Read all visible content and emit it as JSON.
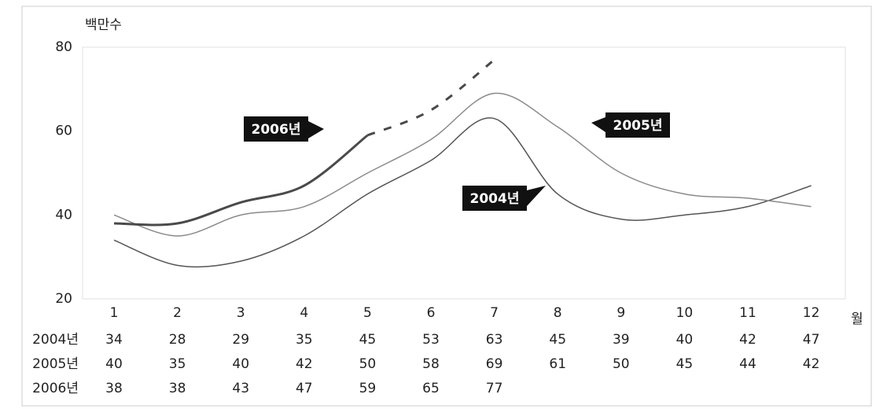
{
  "chart_data": {
    "type": "line",
    "y_label": "백만수",
    "x_label": "월",
    "categories": [
      "1",
      "2",
      "3",
      "4",
      "5",
      "6",
      "7",
      "8",
      "9",
      "10",
      "11",
      "12"
    ],
    "ylim": [
      20,
      80
    ],
    "yticks": [
      20,
      40,
      60,
      80
    ],
    "show_table": true,
    "series": [
      {
        "name": "2004년",
        "color": "#555555",
        "width": 1.5,
        "values": [
          34,
          28,
          29,
          35,
          45,
          53,
          63,
          45,
          39,
          40,
          42,
          47
        ]
      },
      {
        "name": "2005년",
        "color": "#8a8a8a",
        "width": 1.5,
        "values": [
          40,
          35,
          40,
          42,
          50,
          58,
          69,
          61,
          50,
          45,
          44,
          42
        ]
      },
      {
        "name": "2006년",
        "color": "#4a4a4a",
        "width": 3,
        "dashed_after": "5",
        "values": [
          38,
          38,
          43,
          47,
          59,
          65,
          77,
          null,
          null,
          null,
          null,
          null
        ]
      }
    ]
  }
}
